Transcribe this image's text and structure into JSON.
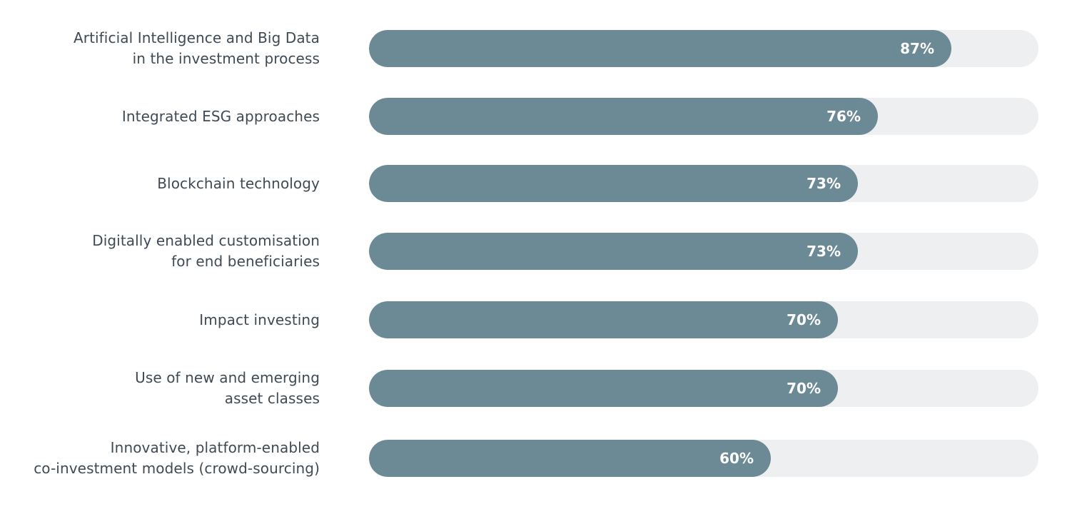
{
  "chart_data": {
    "type": "bar",
    "orientation": "horizontal",
    "categories": [
      [
        "Artificial Intelligence and Big Data",
        "in the investment process"
      ],
      [
        "Integrated ESG approaches"
      ],
      [
        "Blockchain technology"
      ],
      [
        "Digitally enabled customisation",
        "for end beneficiaries"
      ],
      [
        "Impact investing"
      ],
      [
        "Use of new and emerging",
        "asset classes"
      ],
      [
        "Innovative, platform-enabled",
        "co-investment models (crowd-sourcing)"
      ]
    ],
    "values": [
      87,
      76,
      73,
      73,
      70,
      70,
      60
    ],
    "value_labels": [
      "87%",
      "76%",
      "73%",
      "73%",
      "70%",
      "70%",
      "60%"
    ],
    "xlim": [
      0,
      100
    ],
    "unit": "%",
    "grid": false,
    "legend": "none",
    "colors": {
      "bar": "#6b8a96",
      "track": "#eeeff1",
      "label_text": "#3f4a54",
      "value_text": "#ffffff"
    }
  }
}
